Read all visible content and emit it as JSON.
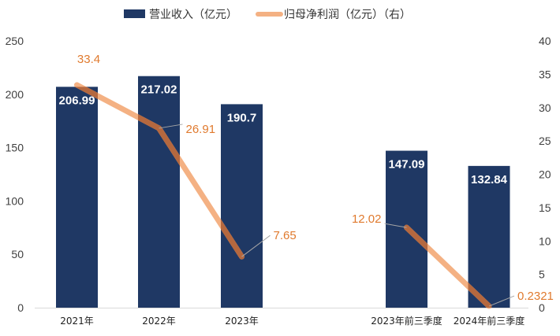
{
  "chart_data": {
    "type": "bar+line",
    "categories": [
      "2021年",
      "2022年",
      "2023年",
      "",
      "2023年前三季度",
      "2024年前三季度"
    ],
    "series": [
      {
        "name": "营业收入（亿元）",
        "type": "bar",
        "axis": "left",
        "values": [
          206.99,
          217.02,
          190.7,
          null,
          147.09,
          132.84
        ],
        "labels": [
          "206.99",
          "217.02",
          "190.7",
          "",
          "147.09",
          "132.84"
        ]
      },
      {
        "name": "归母净利润（亿元）（右）",
        "type": "line",
        "axis": "right",
        "values": [
          33.4,
          26.91,
          7.65,
          null,
          12.02,
          0.2321
        ],
        "labels": [
          "33.4",
          "26.91",
          "7.65",
          "",
          "12.02",
          "0.2321"
        ]
      }
    ],
    "y_left": {
      "min": 0,
      "max": 250,
      "ticks": [
        0,
        50,
        100,
        150,
        200,
        250
      ]
    },
    "y_right": {
      "min": 0,
      "max": 40,
      "ticks": [
        0,
        5,
        10,
        15,
        20,
        25,
        30,
        35,
        40
      ]
    },
    "legend_position": "top-center",
    "grid": false,
    "colors": {
      "bar": "#1f3864",
      "line": "#f4b183",
      "line_overlap": "#b5683f",
      "label_orange": "#e07a2e",
      "leader": "#a6a6a6"
    }
  }
}
